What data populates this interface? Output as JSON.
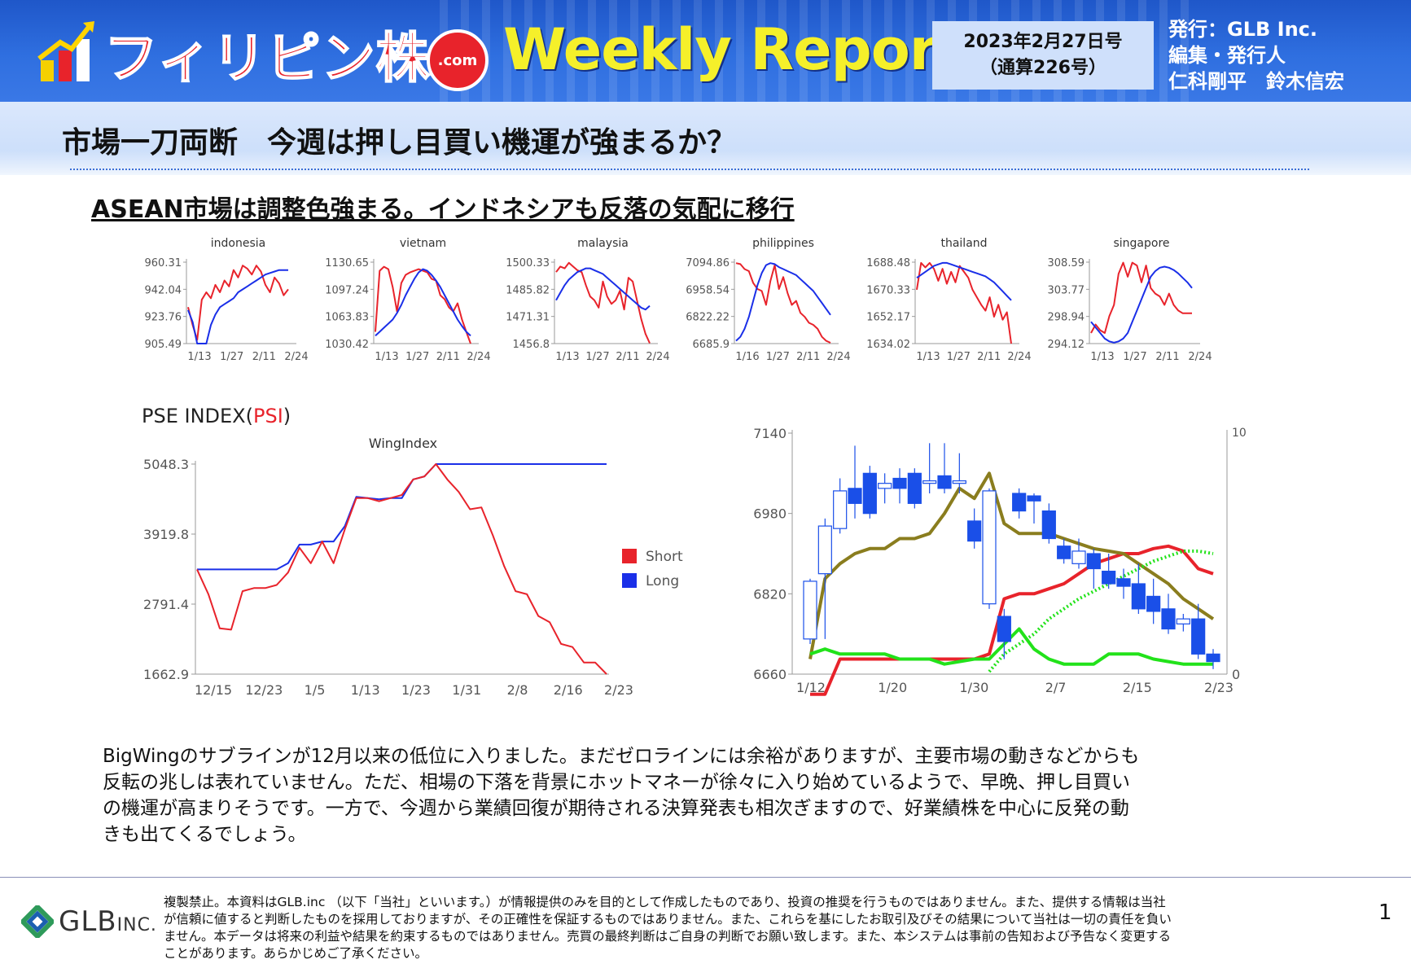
{
  "header": {
    "brand": "フィリピン株",
    "dotcom": ".com",
    "weekly": "Weekly Report",
    "date_line1": "2023年2月27日号",
    "date_line2": "（通算226号）",
    "pub_line1": "発行：GLB Inc.",
    "pub_line2": "編集・発行人",
    "pub_line3": "仁科剛平　鈴木信宏"
  },
  "headline": "市場一刀両断　今週は押し目買い機運が強まるか？",
  "subheadline": "ASEAN市場は調整色強まる。インドネシアも反落の気配に移行",
  "colors": {
    "short": "#e8232b",
    "long": "#1a2fe8",
    "olive": "#8a7d1e",
    "green": "#22e21a",
    "candle": "#1a4fe8"
  },
  "chart_data": [
    {
      "type": "line",
      "title": "indonesia",
      "x_ticks": [
        "1/13",
        "1/27",
        "2/11",
        "2/24"
      ],
      "y_ticks": [
        "960.31",
        "942.04",
        "923.76",
        "905.49"
      ],
      "ylim": [
        905.49,
        960.31
      ],
      "series": [
        {
          "color": "#e8232b",
          "values": [
            930,
            918,
            908,
            935,
            940,
            936,
            945,
            940,
            948,
            944,
            955,
            950,
            958,
            956,
            952,
            958,
            954,
            945,
            940,
            950,
            946,
            938,
            942
          ]
        },
        {
          "color": "#1a2fe8",
          "values": [
            928,
            920,
            905,
            900,
            905,
            918,
            925,
            930,
            932,
            934,
            936,
            940,
            942,
            944,
            946,
            948,
            950,
            952,
            953,
            954,
            955,
            955,
            955
          ]
        }
      ]
    },
    {
      "type": "line",
      "title": "vietnam",
      "x_ticks": [
        "1/13",
        "1/27",
        "2/11",
        "2/24"
      ],
      "y_ticks": [
        "1130.65",
        "1097.24",
        "1063.83",
        "1030.42"
      ],
      "ylim": [
        1030.42,
        1130.65
      ],
      "series": [
        {
          "color": "#e8232b",
          "values": [
            1045,
            1120,
            1125,
            1122,
            1100,
            1070,
            1105,
            1115,
            1118,
            1120,
            1122,
            1120,
            1118,
            1110,
            1108,
            1090,
            1085,
            1075,
            1070,
            1080,
            1060,
            1045,
            1030
          ]
        },
        {
          "color": "#1a2fe8",
          "values": [
            1040,
            1045,
            1050,
            1055,
            1060,
            1068,
            1078,
            1090,
            1100,
            1110,
            1118,
            1122,
            1120,
            1115,
            1108,
            1100,
            1090,
            1080,
            1070,
            1060,
            1052,
            1045,
            1040
          ]
        }
      ]
    },
    {
      "type": "line",
      "title": "malaysia",
      "x_ticks": [
        "1/13",
        "1/27",
        "2/11",
        "2/24"
      ],
      "y_ticks": [
        "1500.33",
        "1485.82",
        "1471.31",
        "1456.8"
      ],
      "ylim": [
        1456.8,
        1500.33
      ],
      "series": [
        {
          "color": "#e8232b",
          "values": [
            1495,
            1498,
            1497,
            1500,
            1498,
            1496,
            1495,
            1488,
            1482,
            1480,
            1476,
            1490,
            1482,
            1478,
            1480,
            1485,
            1475,
            1492,
            1490,
            1480,
            1470,
            1462,
            1457
          ]
        },
        {
          "color": "#1a2fe8",
          "values": [
            1480,
            1484,
            1488,
            1491,
            1493,
            1495,
            1496,
            1497,
            1497,
            1496,
            1495,
            1494,
            1492,
            1490,
            1488,
            1486,
            1484,
            1482,
            1480,
            1478,
            1476,
            1475,
            1477
          ]
        }
      ]
    },
    {
      "type": "line",
      "title": "philippines",
      "x_ticks": [
        "1/16",
        "1/27",
        "2/11",
        "2/24"
      ],
      "y_ticks": [
        "7094.86",
        "6958.54",
        "6822.22",
        "6685.9"
      ],
      "ylim": [
        6685.9,
        7094.86
      ],
      "series": [
        {
          "color": "#e8232b",
          "values": [
            7090,
            7085,
            7060,
            7050,
            6990,
            6960,
            6950,
            6880,
            7000,
            7080,
            6960,
            7020,
            6940,
            6880,
            6900,
            6840,
            6820,
            6790,
            6780,
            6760,
            6720,
            6700,
            6690
          ]
        },
        {
          "color": "#1a2fe8",
          "values": [
            6700,
            6720,
            6760,
            6820,
            6900,
            6980,
            7040,
            7080,
            7090,
            7085,
            7070,
            7060,
            7050,
            7040,
            7030,
            7010,
            6990,
            6970,
            6950,
            6920,
            6890,
            6860,
            6830
          ]
        }
      ]
    },
    {
      "type": "line",
      "title": "thailand",
      "x_ticks": [
        "1/13",
        "1/27",
        "2/11",
        "2/24"
      ],
      "y_ticks": [
        "1688.48",
        "1670.33",
        "1652.17",
        "1634.02"
      ],
      "ylim": [
        1634.02,
        1688.48
      ],
      "series": [
        {
          "color": "#e8232b",
          "values": [
            1670,
            1688,
            1685,
            1688,
            1684,
            1676,
            1684,
            1674,
            1682,
            1675,
            1686,
            1682,
            1678,
            1670,
            1665,
            1660,
            1656,
            1665,
            1652,
            1660,
            1650,
            1655,
            1634
          ]
        },
        {
          "color": "#1a2fe8",
          "values": [
            1678,
            1680,
            1682,
            1684,
            1686,
            1687,
            1688,
            1688,
            1687,
            1686,
            1685,
            1684,
            1683,
            1682,
            1681,
            1680,
            1679,
            1677,
            1675,
            1672,
            1669,
            1666,
            1663
          ]
        }
      ]
    },
    {
      "type": "line",
      "title": "singapore",
      "x_ticks": [
        "1/13",
        "1/27",
        "2/11",
        "2/24"
      ],
      "y_ticks": [
        "308.59",
        "303.77",
        "298.94",
        "294.12"
      ],
      "ylim": [
        294.12,
        308.59
      ],
      "series": [
        {
          "color": "#e8232b",
          "values": [
            296,
            297.5,
            296.5,
            296,
            299,
            301,
            306.5,
            308.5,
            306,
            308.5,
            308,
            305,
            308,
            304,
            303,
            302.5,
            301,
            303,
            301,
            300,
            299.5,
            299.5,
            299.5
          ]
        },
        {
          "color": "#1a2fe8",
          "values": [
            298,
            297,
            296,
            295,
            294.5,
            294.3,
            294.5,
            295,
            296,
            298,
            300,
            302,
            304,
            306,
            307,
            307.6,
            307.8,
            307.6,
            307.2,
            306.6,
            305.8,
            305,
            304
          ]
        }
      ]
    },
    {
      "type": "line",
      "title": "PSE INDEX(PSI)",
      "title_main": "PSE INDEX(",
      "title_accent": "PSI",
      "title_end": ")",
      "subtitle": "WingIndex",
      "x_ticks": [
        "12/15",
        "12/23",
        "1/5",
        "1/13",
        "1/23",
        "1/31",
        "2/8",
        "2/16",
        "2/23"
      ],
      "y_ticks": [
        "5048.3",
        "3919.8",
        "2791.4",
        "1662.9"
      ],
      "ylim": [
        1662.9,
        5048.3
      ],
      "legend": [
        "Short",
        "Long"
      ],
      "legend_position": "right",
      "series": [
        {
          "name": "Short",
          "color": "#e8232b",
          "values": [
            3350,
            2950,
            2400,
            2380,
            3000,
            3050,
            3050,
            3100,
            3300,
            3700,
            3450,
            3800,
            3450,
            4000,
            4500,
            4500,
            4450,
            4500,
            4550,
            4800,
            4850,
            5048,
            4800,
            4600,
            4320,
            4350,
            3900,
            3400,
            3000,
            2950,
            2600,
            2500,
            2150,
            2100,
            1850,
            1850,
            1663
          ]
        },
        {
          "name": "Long",
          "color": "#1a2fe8",
          "values": [
            3350,
            3350,
            3350,
            3350,
            3350,
            3350,
            3350,
            3350,
            3450,
            3750,
            3750,
            3800,
            3800,
            4050,
            4520,
            4500,
            4480,
            4500,
            4500,
            4800,
            4850,
            5048,
            5048,
            5048,
            5048,
            5048,
            5048,
            5048,
            5048,
            5048,
            5048,
            5048,
            5048,
            5048,
            5048,
            5048,
            5048
          ]
        }
      ]
    },
    {
      "type": "candlestick",
      "title": "",
      "x_ticks": [
        "1/12",
        "1/20",
        "1/30",
        "2/7",
        "2/15",
        "2/23"
      ],
      "y_ticks": [
        "7140",
        "6980",
        "6820",
        "6660"
      ],
      "ylim": [
        6660,
        7140
      ],
      "right_y_ticks": [
        "10",
        "0"
      ],
      "candles": [
        {
          "o": 6730,
          "c": 6845,
          "h": 6850,
          "l": 6720
        },
        {
          "o": 6860,
          "c": 6955,
          "h": 6970,
          "l": 6730
        },
        {
          "o": 6950,
          "c": 7025,
          "h": 7050,
          "l": 6940
        },
        {
          "o": 7030,
          "c": 7000,
          "h": 7115,
          "l": 6970
        },
        {
          "o": 7060,
          "c": 6980,
          "h": 7075,
          "l": 6970
        },
        {
          "o": 7030,
          "c": 7040,
          "h": 7060,
          "l": 7000
        },
        {
          "o": 7050,
          "c": 7030,
          "h": 7070,
          "l": 7000
        },
        {
          "o": 7060,
          "c": 7000,
          "h": 7070,
          "l": 6990
        },
        {
          "o": 7040,
          "c": 7045,
          "h": 7120,
          "l": 7020
        },
        {
          "o": 7055,
          "c": 7030,
          "h": 7120,
          "l": 7020
        },
        {
          "o": 7040,
          "c": 7045,
          "h": 7100,
          "l": 7020
        },
        {
          "o": 6965,
          "c": 6925,
          "h": 6990,
          "l": 6910
        },
        {
          "o": 6800,
          "c": 7025,
          "h": 7030,
          "l": 6790
        },
        {
          "o": 6775,
          "c": 6725,
          "h": 6790,
          "l": 6690
        },
        {
          "o": 7020,
          "c": 6985,
          "h": 7030,
          "l": 6970
        },
        {
          "o": 7015,
          "c": 7005,
          "h": 7020,
          "l": 6960
        },
        {
          "o": 6985,
          "c": 6930,
          "h": 7000,
          "l": 6920
        },
        {
          "o": 6915,
          "c": 6890,
          "h": 6930,
          "l": 6880
        },
        {
          "o": 6880,
          "c": 6905,
          "h": 6930,
          "l": 6870
        },
        {
          "o": 6900,
          "c": 6870,
          "h": 6910,
          "l": 6830
        },
        {
          "o": 6865,
          "c": 6840,
          "h": 6900,
          "l": 6830
        },
        {
          "o": 6850,
          "c": 6835,
          "h": 6870,
          "l": 6810
        },
        {
          "o": 6840,
          "c": 6790,
          "h": 6880,
          "l": 6780
        },
        {
          "o": 6815,
          "c": 6785,
          "h": 6850,
          "l": 6760
        },
        {
          "o": 6790,
          "c": 6750,
          "h": 6820,
          "l": 6740
        },
        {
          "o": 6760,
          "c": 6770,
          "h": 6780,
          "l": 6745
        },
        {
          "o": 6770,
          "c": 6700,
          "h": 6800,
          "l": 6690
        },
        {
          "o": 6700,
          "c": 6685,
          "h": 6710,
          "l": 6670
        }
      ],
      "lines": [
        {
          "color": "#e8232b",
          "values": [
            6620,
            6620,
            6690,
            6690,
            6690,
            6690,
            6690,
            6690,
            6690,
            6690,
            6690,
            6690,
            6700,
            6810,
            6820,
            6820,
            6830,
            6840,
            6860,
            6880,
            6890,
            6900,
            6900,
            6910,
            6915,
            6905,
            6870,
            6860
          ]
        },
        {
          "color": "#8a7d1e",
          "values": [
            6690,
            6850,
            6880,
            6900,
            6910,
            6910,
            6930,
            6930,
            6940,
            6980,
            7030,
            7010,
            7060,
            6960,
            6940,
            6940,
            6940,
            6930,
            6920,
            6910,
            6905,
            6900,
            6880,
            6860,
            6840,
            6810,
            6790,
            6770
          ]
        },
        {
          "color": "#22e21a",
          "values": [
            6700,
            6710,
            6700,
            6700,
            6700,
            6700,
            6690,
            6690,
            6690,
            6680,
            6685,
            6690,
            6690,
            6720,
            6750,
            6710,
            6690,
            6680,
            6680,
            6680,
            6700,
            6700,
            6700,
            6690,
            6685,
            6680,
            6680,
            6680
          ]
        },
        {
          "color": "#22e21a",
          "dashed": true,
          "values": [
            null,
            null,
            null,
            null,
            null,
            null,
            null,
            null,
            null,
            null,
            null,
            null,
            6665,
            6700,
            6720,
            6740,
            6770,
            6790,
            6810,
            6825,
            6840,
            6855,
            6870,
            6885,
            6895,
            6905,
            6905,
            6900
          ]
        }
      ]
    }
  ],
  "body_lines": [
    "BigWingのサブラインが12月以来の低位に入りました。まだゼロラインには余裕がありますが、主要市場の動きなどからも",
    "反転の兆しは表れていません。ただ、相場の下落を背景にホットマネーが徐々に入り始めているようで、早晩、押し目買い",
    "の機運が高まりそうです。一方で、今週から業績回復が期待される決算発表も相次ぎますので、好業績株を中心に反発の動",
    "きも出てくるでしょう。"
  ],
  "footer": {
    "logo_main": "GLB",
    "logo_sub": "INC.",
    "page": "1",
    "disclaimer": [
      "複製禁止。本資料はGLB.inc （以下「当社」といいます。）が情報提供のみを目的として作成したものであり、投資の推奨を行うものではありません。また、提供する情報は当社",
      "が信頼に値すると判断したものを採用しておりますが、その正確性を保証するものではありません。また、これらを基にしたお取引及びその結果について当社は一切の責任を負い",
      "ません。本データは将来の利益や結果を約束するものではありません。売買の最終判断はご自身の判断でお願い致します。また、本システムは事前の告知および予告なく変更する",
      "ことがあります。あらかじめご了承ください。"
    ]
  }
}
